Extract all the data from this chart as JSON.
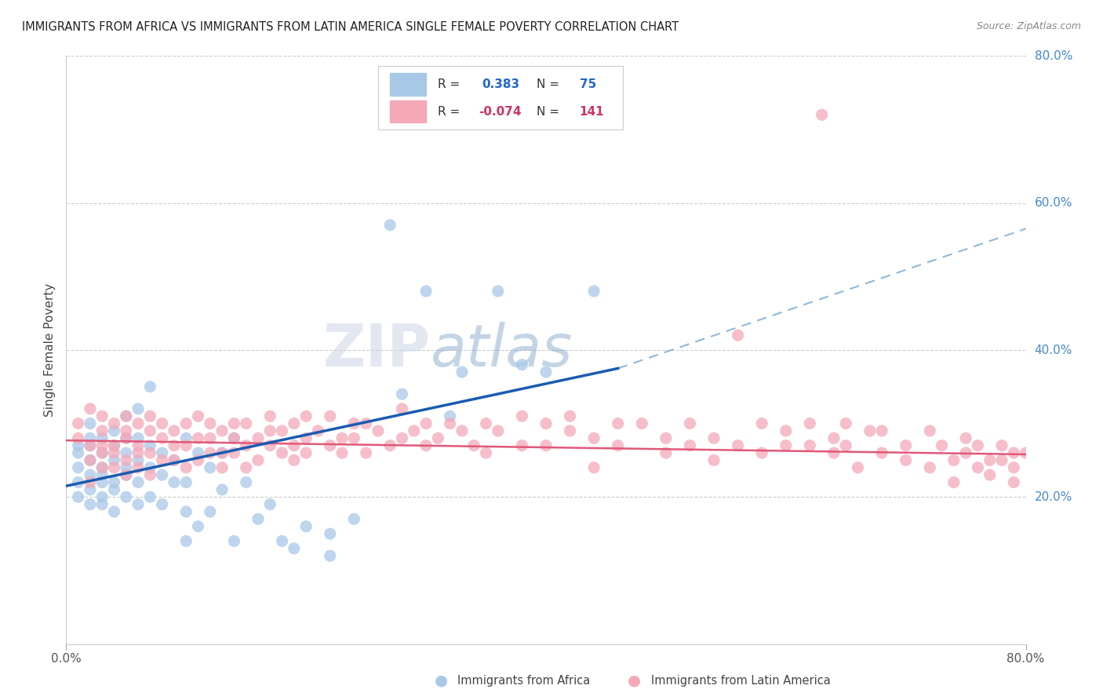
{
  "title": "IMMIGRANTS FROM AFRICA VS IMMIGRANTS FROM LATIN AMERICA SINGLE FEMALE POVERTY CORRELATION CHART",
  "source": "Source: ZipAtlas.com",
  "ylabel": "Single Female Poverty",
  "xlim": [
    0.0,
    0.8
  ],
  "ylim": [
    0.0,
    0.8
  ],
  "yticks": [
    0.2,
    0.4,
    0.6,
    0.8
  ],
  "ytick_labels": [
    "20.0%",
    "40.0%",
    "60.0%",
    "80.0%"
  ],
  "africa_R": 0.383,
  "africa_N": 75,
  "latin_R": -0.074,
  "latin_N": 141,
  "africa_color": "#a8c8e8",
  "latin_color": "#f4a8b8",
  "africa_line_color": "#1a5cb0",
  "africa_dash_color": "#90b8d8",
  "latin_line_color": "#e05878",
  "watermark_color": "#ccd8ea",
  "background_color": "#ffffff",
  "africa_line_start": 0.0,
  "africa_line_solid_end": 0.46,
  "africa_line_dash_end": 0.8,
  "africa_line_y_start": 0.215,
  "africa_line_y_solid_end": 0.375,
  "africa_line_y_dash_end": 0.565,
  "latin_line_y_start": 0.277,
  "latin_line_y_end": 0.258
}
